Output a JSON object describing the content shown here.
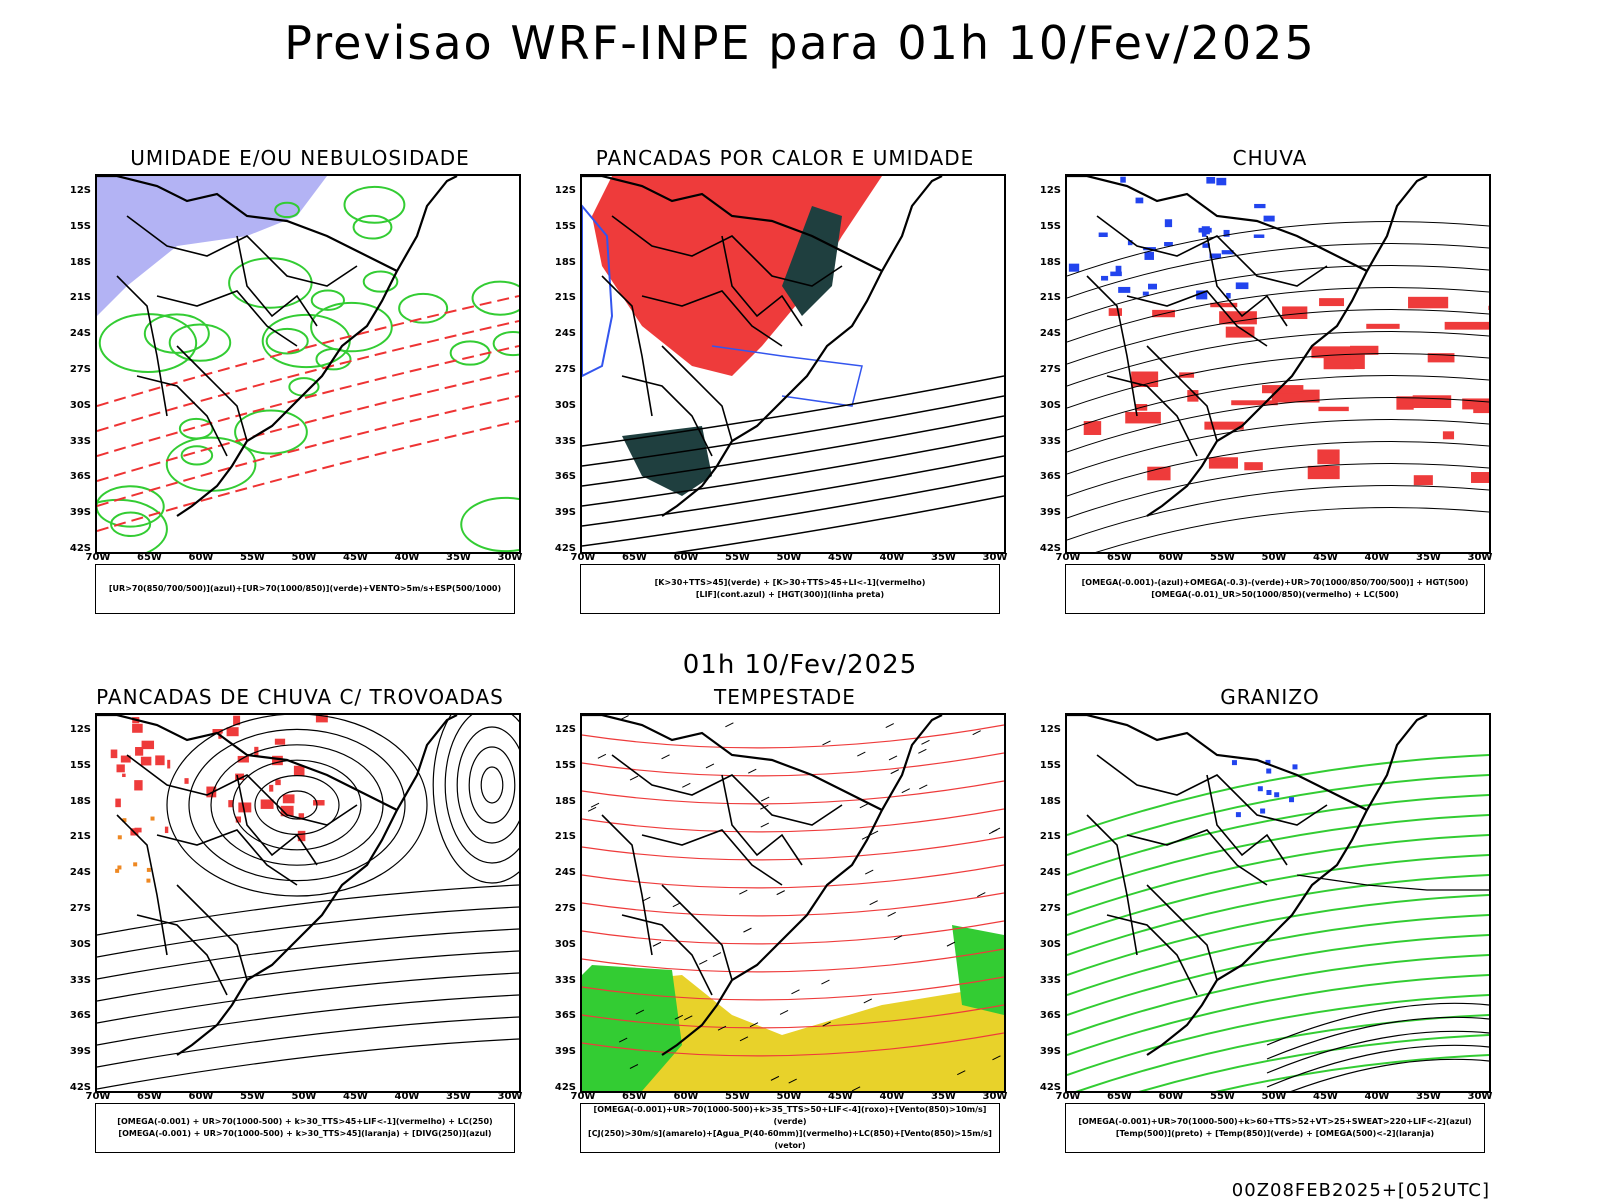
{
  "header": {
    "title": "Previsao WRF-INPE  para 01h 10/Fev/2025",
    "mid_label": "01h 10/Fev/2025",
    "stamp": "00Z08FEB2025+[052UTC]"
  },
  "axes": {
    "lat_labels": [
      "12S",
      "15S",
      "18S",
      "21S",
      "24S",
      "27S",
      "30S",
      "33S",
      "36S",
      "39S",
      "42S"
    ],
    "lon_labels": [
      "70W",
      "65W",
      "60W",
      "55W",
      "50W",
      "45W",
      "40W",
      "35W",
      "30W"
    ]
  },
  "panels": [
    {
      "id": "umidade",
      "title": "UMIDADE E/OU NEBULOSIDADE",
      "legend": [
        "[UR>70(850/700/500)](azul)+[UR>70(1000/850)](verde)+VENTO>5m/s+ESP(500/1000)"
      ],
      "colors": [
        "#9a9af0",
        "#33cc33",
        "#ee3333"
      ],
      "field": "humidity"
    },
    {
      "id": "pancadas-calor",
      "title": "PANCADAS POR CALOR E UMIDADE",
      "legend": [
        "[K>30+TTS>45](verde) + [K>30+TTS>45+LI<-1](vermelho)",
        "[LIF](cont.azul) + [HGT(300)](linha preta)"
      ],
      "colors": [
        "#ee3b3b",
        "#1f3f3f",
        "#3355ee"
      ],
      "field": "heat"
    },
    {
      "id": "chuva",
      "title": "CHUVA",
      "legend": [
        "[OMEGA(-0.001)-(azul)+OMEGA(-0.3)-(verde)+UR>70(1000/850/700/500)] + HGT(500)",
        "[OMEGA(-0.01)_UR>50(1000/850)(vermelho) + LC(500)"
      ],
      "colors": [
        "#ee3b3b",
        "#2244ee",
        "#22aa22"
      ],
      "field": "rain"
    },
    {
      "id": "trovoadas",
      "title": "PANCADAS DE CHUVA C/ TROVOADAS",
      "legend": [
        "[OMEGA(-0.001) + UR>70(1000-500) + k>30_TTS>45+LIF<-1](vermelho) + LC(250)",
        "[OMEGA(-0.001) + UR>70(1000-500) + k>30_TTS>45](laranja) + [DIVG(250)](azul)"
      ],
      "colors": [
        "#ee3b3b",
        "#ee8822",
        "#2244ee"
      ],
      "field": "storm"
    },
    {
      "id": "tempestade",
      "title": "TEMPESTADE",
      "legend": [
        "[OMEGA(-0.001)+UR>70(1000-500)+k>35_TTS>50+LIF<-4](roxo)+[Vento(850)>10m/s](verde)",
        "[CJ(250)>30m/s](amarelo)+[Agua_P(40-60mm)](vermelho)+LC(850)+[Vento(850)>15m/s](vetor)"
      ],
      "colors": [
        "#e8d22a",
        "#33cc33",
        "#ee3b3b"
      ],
      "field": "tempest"
    },
    {
      "id": "granizo",
      "title": "GRANIZO",
      "legend": [
        "[OMEGA(-0.001)+UR>70(1000-500)+k>60+TTS>52+VT>25+SWEAT>220+LIF<-2](azul)",
        "[Temp(500)](preto) + [Temp(850)](verde) + [OMEGA(500)<-2](laranja)"
      ],
      "colors": [
        "#33cc33",
        "#2244ee",
        "#ee8822"
      ],
      "field": "hail"
    }
  ]
}
